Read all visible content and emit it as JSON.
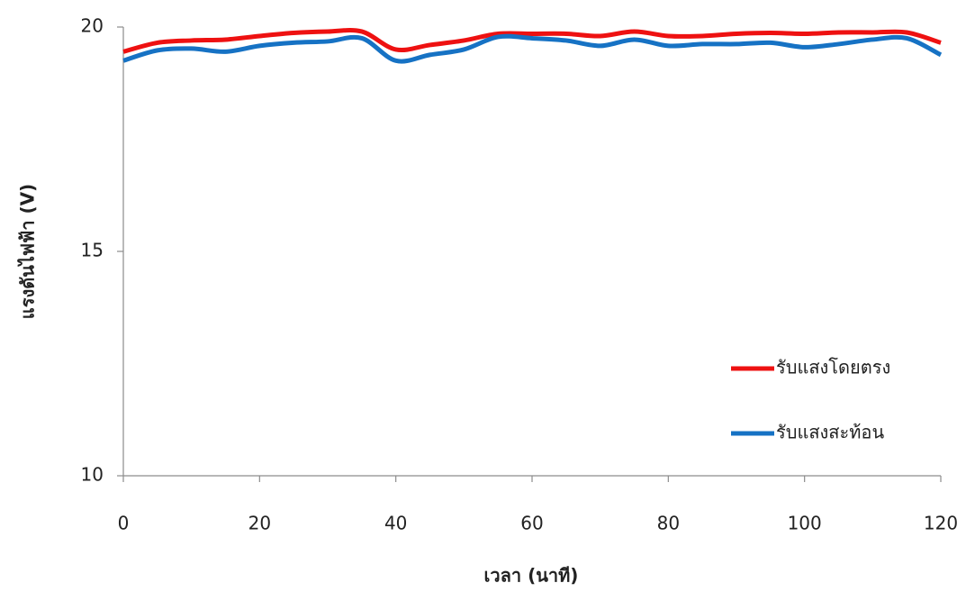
{
  "chart_data": {
    "type": "line",
    "x_label": "เวลา (นาที)",
    "y_label": "แรงดันไฟฟ้า (V)",
    "x": [
      0,
      5,
      10,
      15,
      20,
      25,
      30,
      35,
      40,
      45,
      50,
      55,
      60,
      65,
      70,
      75,
      80,
      85,
      90,
      95,
      100,
      105,
      110,
      115,
      120
    ],
    "series": [
      {
        "name": "รับแสงโดยตรง",
        "color": "#ee1111",
        "values": [
          19.45,
          19.65,
          19.7,
          19.72,
          19.8,
          19.87,
          19.9,
          19.9,
          19.5,
          19.6,
          19.7,
          19.85,
          19.85,
          19.85,
          19.8,
          19.9,
          19.8,
          19.8,
          19.85,
          19.87,
          19.85,
          19.88,
          19.88,
          19.88,
          19.65
        ]
      },
      {
        "name": "รับแสงสะท้อน",
        "color": "#1672c4",
        "values": [
          19.25,
          19.48,
          19.52,
          19.45,
          19.58,
          19.65,
          19.68,
          19.75,
          19.25,
          19.38,
          19.5,
          19.78,
          19.75,
          19.7,
          19.58,
          19.72,
          19.58,
          19.62,
          19.62,
          19.65,
          19.55,
          19.62,
          19.72,
          19.75,
          19.38
        ]
      }
    ],
    "xlim": [
      0,
      120
    ],
    "xticks": [
      0,
      20,
      40,
      60,
      80,
      100,
      120
    ],
    "ylim": [
      10,
      20
    ],
    "yticks": [
      10,
      15,
      20
    ],
    "legend": "right"
  }
}
